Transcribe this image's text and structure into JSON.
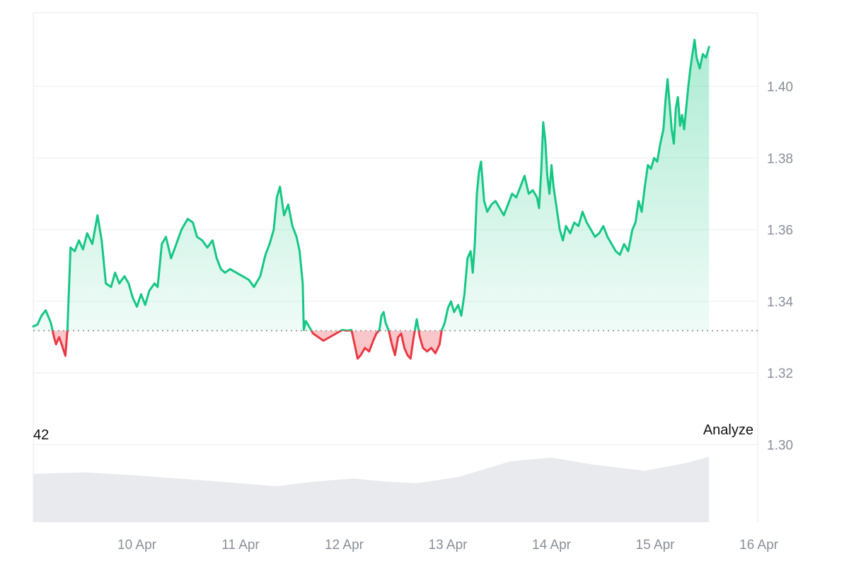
{
  "chart_data": {
    "type": "area",
    "title": "",
    "xlabel": "",
    "ylabel": "",
    "baseline": 1.3318,
    "ylim": [
      1.3,
      1.42
    ],
    "ytick_values": [
      1.3,
      1.32,
      1.34,
      1.36,
      1.38,
      1.4
    ],
    "ytick_labels": [
      "1.30",
      "1.32",
      "1.34",
      "1.36",
      "1.38",
      "1.40"
    ],
    "x_tick_labels": [
      "10 Apr",
      "11 Apr",
      "12 Apr",
      "13 Apr",
      "14 Apr",
      "15 Apr",
      "16 Apr"
    ],
    "x_tick_days": [
      1,
      2,
      3,
      4,
      5,
      6,
      7
    ],
    "grid": "horizontal",
    "colors": {
      "above_line": "#16c784",
      "below_line": "#ea3943",
      "above_fill": "#16c784",
      "below_fill": "#ea3943",
      "volume": "#e8eaee",
      "baseline": "#8a8f98"
    },
    "series": [
      {
        "points": [
          [
            0.0,
            1.333
          ],
          [
            0.04,
            1.3335
          ],
          [
            0.08,
            1.336
          ],
          [
            0.12,
            1.3375
          ],
          [
            0.17,
            1.334
          ],
          [
            0.2,
            1.33
          ],
          [
            0.22,
            1.328
          ],
          [
            0.25,
            1.33
          ],
          [
            0.28,
            1.3275
          ],
          [
            0.31,
            1.3248
          ],
          [
            0.33,
            1.332
          ],
          [
            0.36,
            1.355
          ],
          [
            0.4,
            1.354
          ],
          [
            0.44,
            1.357
          ],
          [
            0.48,
            1.3545
          ],
          [
            0.52,
            1.359
          ],
          [
            0.57,
            1.356
          ],
          [
            0.62,
            1.364
          ],
          [
            0.66,
            1.357
          ],
          [
            0.7,
            1.345
          ],
          [
            0.75,
            1.344
          ],
          [
            0.79,
            1.348
          ],
          [
            0.83,
            1.345
          ],
          [
            0.88,
            1.347
          ],
          [
            0.92,
            1.345
          ],
          [
            0.96,
            1.341
          ],
          [
            1.0,
            1.3385
          ],
          [
            1.04,
            1.342
          ],
          [
            1.08,
            1.339
          ],
          [
            1.12,
            1.343
          ],
          [
            1.17,
            1.345
          ],
          [
            1.2,
            1.344
          ],
          [
            1.24,
            1.356
          ],
          [
            1.28,
            1.358
          ],
          [
            1.33,
            1.352
          ],
          [
            1.38,
            1.356
          ],
          [
            1.43,
            1.36
          ],
          [
            1.49,
            1.363
          ],
          [
            1.54,
            1.362
          ],
          [
            1.58,
            1.358
          ],
          [
            1.63,
            1.357
          ],
          [
            1.68,
            1.355
          ],
          [
            1.73,
            1.357
          ],
          [
            1.77,
            1.352
          ],
          [
            1.81,
            1.349
          ],
          [
            1.85,
            1.348
          ],
          [
            1.9,
            1.349
          ],
          [
            1.96,
            1.348
          ],
          [
            2.02,
            1.347
          ],
          [
            2.08,
            1.346
          ],
          [
            2.13,
            1.344
          ],
          [
            2.19,
            1.347
          ],
          [
            2.24,
            1.353
          ],
          [
            2.28,
            1.356
          ],
          [
            2.32,
            1.36
          ],
          [
            2.35,
            1.369
          ],
          [
            2.38,
            1.372
          ],
          [
            2.42,
            1.364
          ],
          [
            2.46,
            1.367
          ],
          [
            2.5,
            1.361
          ],
          [
            2.54,
            1.358
          ],
          [
            2.57,
            1.354
          ],
          [
            2.6,
            1.345
          ],
          [
            2.61,
            1.332
          ],
          [
            2.63,
            1.3345
          ],
          [
            2.66,
            1.333
          ],
          [
            2.7,
            1.331
          ],
          [
            2.75,
            1.33
          ],
          [
            2.8,
            1.329
          ],
          [
            2.86,
            1.33
          ],
          [
            2.92,
            1.331
          ],
          [
            2.98,
            1.332
          ],
          [
            3.03,
            1.3318
          ],
          [
            3.07,
            1.332
          ],
          [
            3.1,
            1.328
          ],
          [
            3.13,
            1.324
          ],
          [
            3.16,
            1.325
          ],
          [
            3.2,
            1.327
          ],
          [
            3.24,
            1.326
          ],
          [
            3.28,
            1.329
          ],
          [
            3.31,
            1.331
          ],
          [
            3.34,
            1.332
          ],
          [
            3.36,
            1.336
          ],
          [
            3.38,
            1.337
          ],
          [
            3.4,
            1.334
          ],
          [
            3.43,
            1.3318
          ],
          [
            3.46,
            1.328
          ],
          [
            3.49,
            1.325
          ],
          [
            3.52,
            1.33
          ],
          [
            3.55,
            1.331
          ],
          [
            3.58,
            1.327
          ],
          [
            3.61,
            1.325
          ],
          [
            3.64,
            1.324
          ],
          [
            3.67,
            1.33
          ],
          [
            3.7,
            1.335
          ],
          [
            3.73,
            1.33
          ],
          [
            3.76,
            1.327
          ],
          [
            3.8,
            1.326
          ],
          [
            3.84,
            1.327
          ],
          [
            3.88,
            1.3255
          ],
          [
            3.92,
            1.328
          ],
          [
            3.94,
            1.3318
          ],
          [
            3.97,
            1.334
          ],
          [
            4.0,
            1.338
          ],
          [
            4.03,
            1.34
          ],
          [
            4.06,
            1.337
          ],
          [
            4.1,
            1.339
          ],
          [
            4.13,
            1.336
          ],
          [
            4.16,
            1.342
          ],
          [
            4.19,
            1.352
          ],
          [
            4.22,
            1.354
          ],
          [
            4.24,
            1.348
          ],
          [
            4.26,
            1.356
          ],
          [
            4.28,
            1.37
          ],
          [
            4.3,
            1.376
          ],
          [
            4.32,
            1.379
          ],
          [
            4.35,
            1.368
          ],
          [
            4.38,
            1.365
          ],
          [
            4.42,
            1.367
          ],
          [
            4.46,
            1.368
          ],
          [
            4.5,
            1.366
          ],
          [
            4.54,
            1.364
          ],
          [
            4.58,
            1.367
          ],
          [
            4.62,
            1.37
          ],
          [
            4.66,
            1.369
          ],
          [
            4.7,
            1.372
          ],
          [
            4.74,
            1.375
          ],
          [
            4.78,
            1.37
          ],
          [
            4.82,
            1.371
          ],
          [
            4.86,
            1.369
          ],
          [
            4.88,
            1.366
          ],
          [
            4.9,
            1.376
          ],
          [
            4.92,
            1.39
          ],
          [
            4.94,
            1.385
          ],
          [
            4.96,
            1.375
          ],
          [
            4.98,
            1.37
          ],
          [
            5.0,
            1.378
          ],
          [
            5.02,
            1.372
          ],
          [
            5.05,
            1.366
          ],
          [
            5.08,
            1.36
          ],
          [
            5.11,
            1.357
          ],
          [
            5.14,
            1.361
          ],
          [
            5.18,
            1.359
          ],
          [
            5.22,
            1.362
          ],
          [
            5.26,
            1.361
          ],
          [
            5.3,
            1.365
          ],
          [
            5.34,
            1.362
          ],
          [
            5.38,
            1.36
          ],
          [
            5.42,
            1.358
          ],
          [
            5.46,
            1.359
          ],
          [
            5.5,
            1.361
          ],
          [
            5.54,
            1.358
          ],
          [
            5.58,
            1.356
          ],
          [
            5.62,
            1.354
          ],
          [
            5.66,
            1.353
          ],
          [
            5.7,
            1.356
          ],
          [
            5.74,
            1.354
          ],
          [
            5.78,
            1.36
          ],
          [
            5.81,
            1.362
          ],
          [
            5.84,
            1.368
          ],
          [
            5.87,
            1.365
          ],
          [
            5.9,
            1.372
          ],
          [
            5.93,
            1.378
          ],
          [
            5.96,
            1.377
          ],
          [
            5.99,
            1.38
          ],
          [
            6.02,
            1.379
          ],
          [
            6.05,
            1.384
          ],
          [
            6.08,
            1.388
          ],
          [
            6.1,
            1.396
          ],
          [
            6.12,
            1.402
          ],
          [
            6.14,
            1.395
          ],
          [
            6.16,
            1.388
          ],
          [
            6.18,
            1.384
          ],
          [
            6.2,
            1.394
          ],
          [
            6.22,
            1.397
          ],
          [
            6.24,
            1.389
          ],
          [
            6.26,
            1.392
          ],
          [
            6.28,
            1.388
          ],
          [
            6.3,
            1.394
          ],
          [
            6.32,
            1.4
          ],
          [
            6.34,
            1.405
          ],
          [
            6.36,
            1.409
          ],
          [
            6.38,
            1.413
          ],
          [
            6.4,
            1.408
          ],
          [
            6.43,
            1.405
          ],
          [
            6.46,
            1.409
          ],
          [
            6.49,
            1.408
          ],
          [
            6.52,
            1.411
          ]
        ]
      }
    ],
    "volume": {
      "points": [
        [
          0.0,
          0.62
        ],
        [
          0.5,
          0.64
        ],
        [
          1.0,
          0.6
        ],
        [
          1.5,
          0.55
        ],
        [
          2.0,
          0.5
        ],
        [
          2.35,
          0.46
        ],
        [
          2.7,
          0.52
        ],
        [
          3.1,
          0.56
        ],
        [
          3.4,
          0.52
        ],
        [
          3.7,
          0.5
        ],
        [
          4.1,
          0.58
        ],
        [
          4.6,
          0.78
        ],
        [
          5.0,
          0.83
        ],
        [
          5.4,
          0.74
        ],
        [
          5.9,
          0.66
        ],
        [
          6.3,
          0.76
        ],
        [
          6.52,
          0.84
        ]
      ]
    }
  },
  "overlay": {
    "left_label": "42",
    "right_label": "Analyze"
  }
}
